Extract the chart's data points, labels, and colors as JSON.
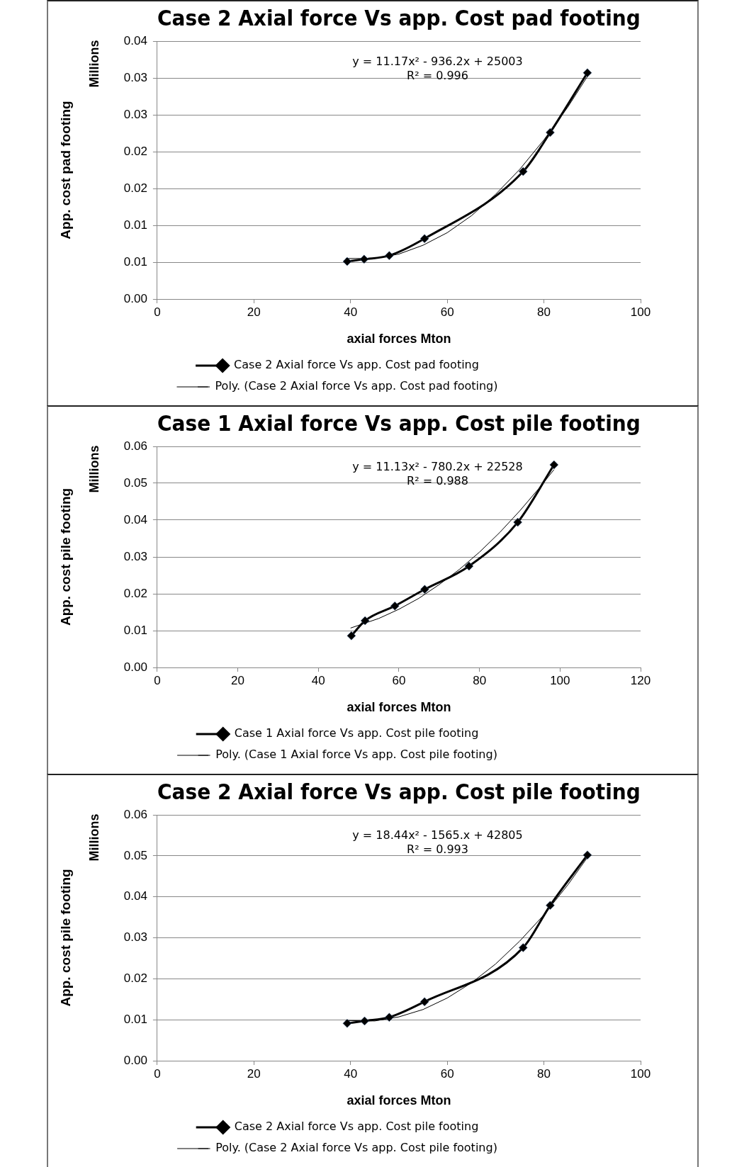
{
  "chart_data": [
    {
      "type": "line",
      "title": "Case 2 Axial force Vs app. Cost pad footing",
      "xlabel": "axial forces Mton",
      "ylabel": "App. cost pad footing",
      "annotations": [
        "Millions",
        "y = 11.17x² - 936.2x + 25003",
        "R² = 0.996"
      ],
      "series": [
        {
          "name": "Case 2 Axial force Vs app. Cost pad footing",
          "color": "#000000",
          "x": [
            39.3,
            42.8,
            48.0,
            55.3,
            75.7,
            81.3,
            89.0
          ],
          "values": [
            0.0051,
            0.0054,
            0.0059,
            0.0082,
            0.0173,
            0.0226,
            0.0307
          ],
          "marker": "diamond"
        },
        {
          "name": "Poly. (Case 2 Axial force Vs app. Cost pad footing)",
          "color": "#000000",
          "x": [
            39,
            45,
            50,
            55,
            60,
            65,
            70,
            75,
            80,
            85,
            89
          ],
          "values": [
            0.0055,
            0.0055,
            0.0061,
            0.0073,
            0.009,
            0.0113,
            0.0142,
            0.0176,
            0.0216,
            0.0261,
            0.0302
          ],
          "marker": "none"
        }
      ],
      "xlim": [
        0,
        100
      ],
      "xticks": [
        0,
        20,
        40,
        60,
        80,
        100
      ],
      "ylim": [
        0,
        0.035
      ],
      "yticks": [
        {
          "value": 0,
          "label": "0.00"
        },
        {
          "value": 0.005,
          "label": "0.01"
        },
        {
          "value": 0.01,
          "label": "0.01"
        },
        {
          "value": 0.015,
          "label": "0.02"
        },
        {
          "value": 0.02,
          "label": "0.02"
        },
        {
          "value": 0.025,
          "label": "0.03"
        },
        {
          "value": 0.03,
          "label": "0.03"
        },
        {
          "value": 0.035,
          "label": "0.04"
        }
      ],
      "grid": "y",
      "legend": "bottom"
    },
    {
      "type": "line",
      "title": "Case 1 Axial force Vs app. Cost pile footing",
      "xlabel": "axial forces Mton",
      "ylabel": "App. cost pile footing",
      "annotations": [
        "Millions",
        "y = 11.13x² - 780.2x + 22528",
        "R² = 0.988"
      ],
      "series": [
        {
          "name": "Case 1 Axial force Vs app. Cost pile footing",
          "color": "#000000",
          "x": [
            48.2,
            51.6,
            59.0,
            66.4,
            77.4,
            89.5,
            98.5
          ],
          "values": [
            0.0086,
            0.0127,
            0.0167,
            0.0212,
            0.0275,
            0.0394,
            0.055
          ],
          "marker": "diamond"
        },
        {
          "name": "Poly. (Case 1 Axial force Vs app. Cost pile footing)",
          "color": "#000000",
          "x": [
            48,
            55,
            60,
            65,
            70,
            75,
            80,
            85,
            90,
            95,
            98.5
          ],
          "values": [
            0.0107,
            0.0133,
            0.0158,
            0.0188,
            0.0225,
            0.0266,
            0.0313,
            0.0366,
            0.0425,
            0.0489,
            0.0537
          ],
          "marker": "none"
        }
      ],
      "xlim": [
        0,
        120
      ],
      "xticks": [
        0,
        20,
        40,
        60,
        80,
        100,
        120
      ],
      "ylim": [
        0,
        0.06
      ],
      "yticks": [
        {
          "value": 0,
          "label": "0.00"
        },
        {
          "value": 0.01,
          "label": "0.01"
        },
        {
          "value": 0.02,
          "label": "0.02"
        },
        {
          "value": 0.03,
          "label": "0.03"
        },
        {
          "value": 0.04,
          "label": "0.04"
        },
        {
          "value": 0.05,
          "label": "0.05"
        },
        {
          "value": 0.06,
          "label": "0.06"
        }
      ],
      "grid": "y",
      "legend": "bottom"
    },
    {
      "type": "line",
      "title": "Case 2 Axial force Vs app. Cost pile footing",
      "xlabel": "axial forces Mton",
      "ylabel": "App. cost pile footing",
      "annotations": [
        "Millions",
        "y = 18.44x² - 1565.x + 42805",
        "R² = 0.993"
      ],
      "series": [
        {
          "name": "Case 2 Axial force Vs app. Cost pile footing",
          "color": "#000000",
          "x": [
            39.3,
            42.9,
            48.0,
            55.3,
            75.7,
            81.3,
            89.0
          ],
          "values": [
            0.0091,
            0.0097,
            0.0106,
            0.0144,
            0.0276,
            0.0379,
            0.0502
          ],
          "marker": "diamond"
        },
        {
          "name": "Poly. (Case 2 Axial force Vs app. Cost pile footing)",
          "color": "#000000",
          "x": [
            39,
            45,
            50,
            55,
            60,
            65,
            70,
            75,
            80,
            85,
            89
          ],
          "values": [
            0.0098,
            0.0097,
            0.0107,
            0.0125,
            0.0153,
            0.019,
            0.0236,
            0.0292,
            0.0356,
            0.043,
            0.0496
          ],
          "marker": "none"
        }
      ],
      "xlim": [
        0,
        100
      ],
      "xticks": [
        0,
        20,
        40,
        60,
        80,
        100
      ],
      "ylim": [
        0,
        0.06
      ],
      "yticks": [
        {
          "value": 0,
          "label": "0.00"
        },
        {
          "value": 0.01,
          "label": "0.01"
        },
        {
          "value": 0.02,
          "label": "0.02"
        },
        {
          "value": 0.03,
          "label": "0.03"
        },
        {
          "value": 0.04,
          "label": "0.04"
        },
        {
          "value": 0.05,
          "label": "0.05"
        },
        {
          "value": 0.06,
          "label": "0.06"
        }
      ],
      "grid": "y",
      "legend": "bottom"
    }
  ]
}
